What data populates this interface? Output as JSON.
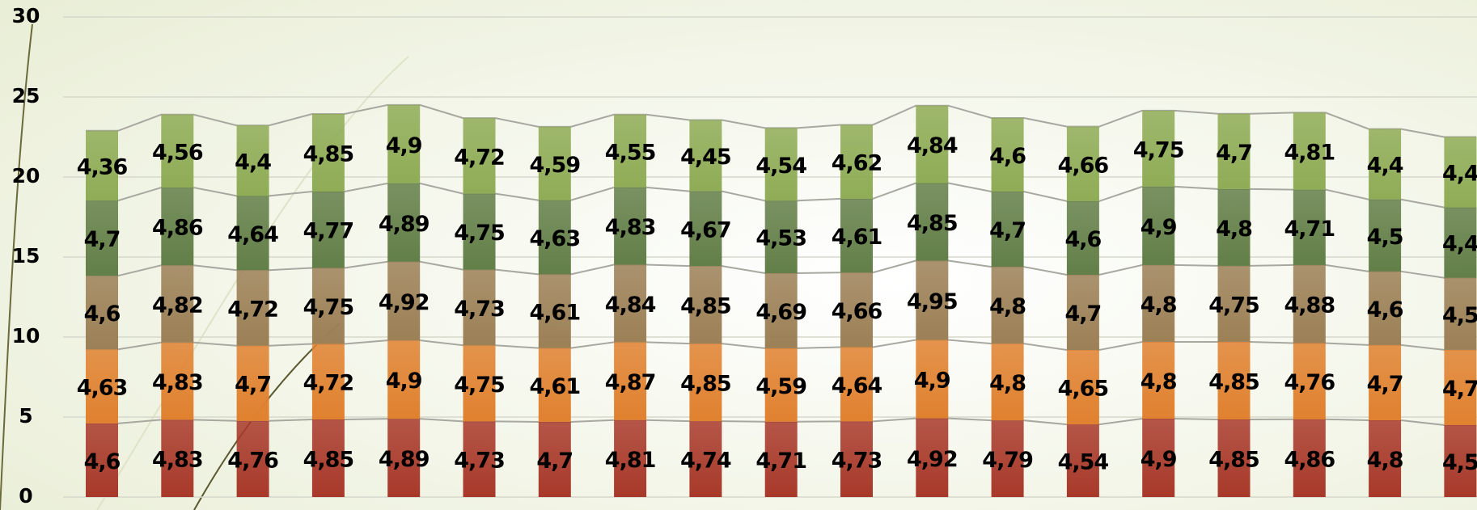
{
  "chart_data": {
    "type": "stacked-bar",
    "categories": [
      null,
      null,
      null,
      null,
      null,
      null,
      null,
      null,
      null,
      null,
      null,
      null,
      null,
      null,
      null,
      null,
      null,
      null,
      null
    ],
    "ylim": [
      0,
      30
    ],
    "yticks": [
      0,
      5,
      10,
      15,
      20,
      25,
      30
    ],
    "grid": true,
    "series": [
      {
        "color": "#a8392a",
        "values": [
          4.6,
          4.83,
          4.76,
          4.85,
          4.89,
          4.73,
          4.7,
          4.81,
          4.74,
          4.71,
          4.73,
          4.92,
          4.79,
          4.54,
          4.9,
          4.85,
          4.86,
          4.8,
          4.5
        ],
        "value_labels": [
          "4,6",
          "4,83",
          "4,76",
          "4,85",
          "4,89",
          "4,73",
          "4,7",
          "4,81",
          "4,74",
          "4,71",
          "4,73",
          "4,92",
          "4,79",
          "4,54",
          "4,9",
          "4,85",
          "4,86",
          "4,8",
          "4,5"
        ]
      },
      {
        "color": "#e0812f",
        "values": [
          4.63,
          4.83,
          4.7,
          4.72,
          4.9,
          4.75,
          4.61,
          4.87,
          4.85,
          4.59,
          4.64,
          4.9,
          4.8,
          4.65,
          4.8,
          4.85,
          4.76,
          4.7,
          4.7
        ],
        "value_labels": [
          "4,63",
          "4,83",
          "4,7",
          "4,72",
          "4,9",
          "4,75",
          "4,61",
          "4,87",
          "4,85",
          "4,59",
          "4,64",
          "4,9",
          "4,8",
          "4,65",
          "4,8",
          "4,85",
          "4,76",
          "4,7",
          "4,7"
        ]
      },
      {
        "color": "#9c8056",
        "values": [
          4.6,
          4.82,
          4.72,
          4.75,
          4.92,
          4.73,
          4.61,
          4.84,
          4.85,
          4.69,
          4.66,
          4.95,
          4.8,
          4.7,
          4.8,
          4.75,
          4.88,
          4.6,
          4.5
        ],
        "value_labels": [
          "4,6",
          "4,82",
          "4,72",
          "4,75",
          "4,92",
          "4,73",
          "4,61",
          "4,84",
          "4,85",
          "4,69",
          "4,66",
          "4,95",
          "4,8",
          "4,7",
          "4,8",
          "4,75",
          "4,88",
          "4,6",
          "4,5"
        ]
      },
      {
        "color": "#637f48",
        "values": [
          4.7,
          4.86,
          4.64,
          4.77,
          4.89,
          4.75,
          4.63,
          4.83,
          4.67,
          4.53,
          4.61,
          4.85,
          4.7,
          4.6,
          4.9,
          4.8,
          4.71,
          4.5,
          4.4
        ],
        "value_labels": [
          "4,7",
          "4,86",
          "4,64",
          "4,77",
          "4,89",
          "4,75",
          "4,63",
          "4,83",
          "4,67",
          "4,53",
          "4,61",
          "4,85",
          "4,7",
          "4,6",
          "4,9",
          "4,8",
          "4,71",
          "4,5",
          "4,4"
        ]
      },
      {
        "color": "#8fac56",
        "values": [
          4.36,
          4.56,
          4.4,
          4.85,
          4.9,
          4.72,
          4.59,
          4.55,
          4.45,
          4.54,
          4.62,
          4.84,
          4.6,
          4.66,
          4.75,
          4.7,
          4.81,
          4.4,
          4.4
        ],
        "value_labels": [
          "4,36",
          "4,56",
          "4,4",
          "4,85",
          "4,9",
          "4,72",
          "4,59",
          "4,55",
          "4,45",
          "4,54",
          "4,62",
          "4,84",
          "4,6",
          "4,66",
          "4,75",
          "4,7",
          "4,81",
          "4,4",
          "4,4"
        ]
      }
    ]
  }
}
